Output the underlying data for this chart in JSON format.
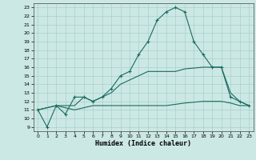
{
  "xlabel": "Humidex (Indice chaleur)",
  "bg_color": "#cce8e4",
  "grid_color": "#a8d0cc",
  "line_color": "#1a6b60",
  "xlim": [
    -0.5,
    23.5
  ],
  "ylim": [
    8.5,
    23.5
  ],
  "xticks": [
    0,
    1,
    2,
    3,
    4,
    5,
    6,
    7,
    8,
    9,
    10,
    11,
    12,
    13,
    14,
    15,
    16,
    17,
    18,
    19,
    20,
    21,
    22,
    23
  ],
  "yticks": [
    9,
    10,
    11,
    12,
    13,
    14,
    15,
    16,
    17,
    18,
    19,
    20,
    21,
    22,
    23
  ],
  "line1_x": [
    0,
    1,
    2,
    3,
    4,
    5,
    6,
    7,
    8,
    9,
    10,
    11,
    12,
    13,
    14,
    15,
    16,
    17,
    18,
    19,
    20,
    21,
    22,
    23
  ],
  "line1_y": [
    11,
    9,
    11.5,
    10.5,
    12.5,
    12.5,
    12,
    12.5,
    13.5,
    15,
    15.5,
    17.5,
    19,
    21.5,
    22.5,
    23,
    22.5,
    19,
    17.5,
    16,
    16,
    12.5,
    12,
    11.5
  ],
  "line2_x": [
    0,
    2,
    4,
    5,
    6,
    7,
    8,
    9,
    10,
    11,
    12,
    13,
    14,
    15,
    16,
    17,
    18,
    19,
    20,
    21,
    22,
    23
  ],
  "line2_y": [
    11,
    11.5,
    11.5,
    12.5,
    12.0,
    12.5,
    13.0,
    14.0,
    14.5,
    15.0,
    15.5,
    15.5,
    15.5,
    15.5,
    15.8,
    15.9,
    16.0,
    16.0,
    16.0,
    13.0,
    12.0,
    11.5
  ],
  "line3_x": [
    0,
    2,
    4,
    6,
    8,
    10,
    12,
    14,
    16,
    18,
    20,
    21,
    22,
    23
  ],
  "line3_y": [
    11,
    11.5,
    11.0,
    11.5,
    11.5,
    11.5,
    11.5,
    11.5,
    11.8,
    12.0,
    12.0,
    11.8,
    11.5,
    11.5
  ]
}
